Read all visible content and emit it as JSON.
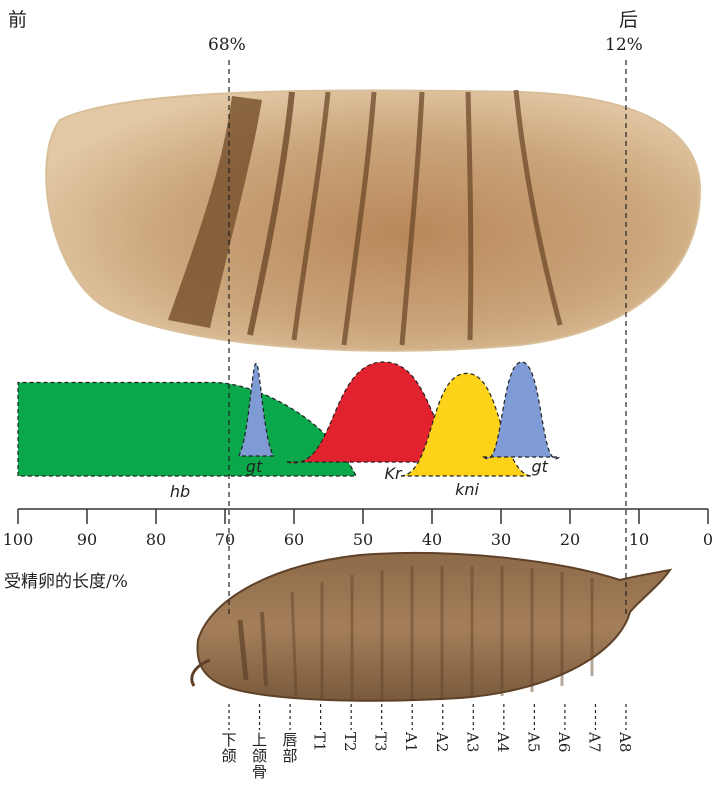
{
  "labels": {
    "anterior": "前",
    "posterior": "后",
    "pct_left": "68%",
    "pct_right": "12%",
    "axis_title": "受精卵的长度/%"
  },
  "chart_data": {
    "type": "area",
    "x_axis": {
      "label": "受精卵的长度/%",
      "range": [
        100,
        0
      ],
      "ticks": [
        100,
        90,
        80,
        70,
        60,
        50,
        40,
        30,
        20,
        10,
        0
      ]
    },
    "reference_lines": [
      {
        "label": "68%",
        "x": 68
      },
      {
        "label": "12%",
        "x": 12
      }
    ],
    "series": [
      {
        "name": "hb",
        "color": "#0aa84a",
        "shape": "plateau",
        "start": 100,
        "plateau_end": 68,
        "end": 51,
        "peak": 1.0
      },
      {
        "name": "gt",
        "color": "#7f9bd6",
        "shape": "spike",
        "center": 65.5,
        "width": 5,
        "peak": 1.0
      },
      {
        "name": "Kr",
        "color": "#e2222e",
        "shape": "bell",
        "center": 47,
        "width": 28,
        "peak": 1.0
      },
      {
        "name": "kni",
        "color": "#ffd21a",
        "shape": "bell",
        "center": 35,
        "width": 19,
        "peak": 0.9
      },
      {
        "name": "gt",
        "color": "#7f9bd6",
        "shape": "bell",
        "center": 27,
        "width": 11,
        "peak": 1.0
      }
    ]
  },
  "larva_segments": [
    "下颌",
    "上颌骨",
    "唇部",
    "T1",
    "T2",
    "T3",
    "A1",
    "A2",
    "A3",
    "A4",
    "A5",
    "A6",
    "A7",
    "A8"
  ]
}
